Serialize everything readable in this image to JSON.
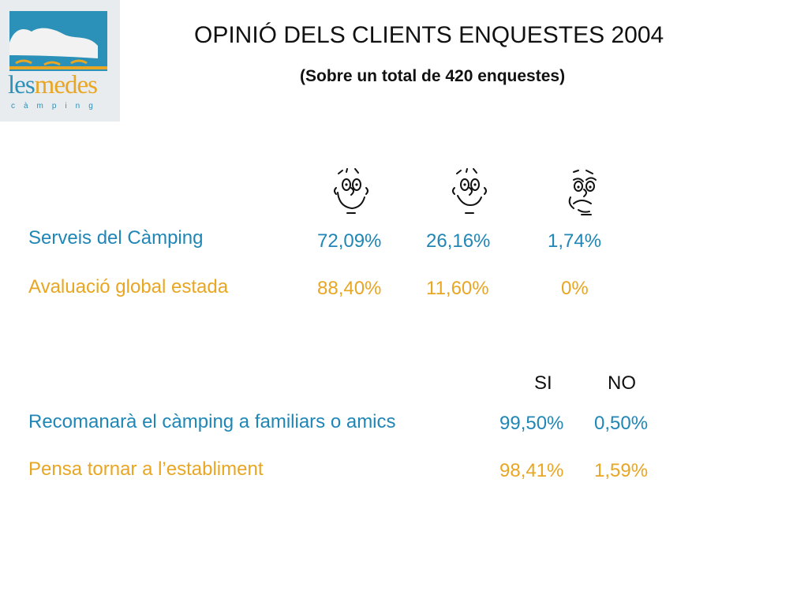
{
  "header": {
    "title": "OPINIÓ DELS CLIENTS ENQUESTES 2004",
    "subtitle": "(Sobre un total de 420 enquestes)"
  },
  "logo": {
    "word_part1": "les",
    "word_part2": "medes",
    "tagline": "càmping",
    "colors": {
      "blue": "#2b91b8",
      "orange": "#e8a623"
    }
  },
  "faces": [
    "very-happy-face-icon",
    "happy-face-icon",
    "sad-face-icon"
  ],
  "satisfaction": {
    "rows": [
      {
        "label": "Serveis del Càmping",
        "values": [
          "72,09%",
          "26,16%",
          "1,74%"
        ]
      },
      {
        "label": "Avaluació global estada",
        "values": [
          "88,40%",
          "11,60%",
          "0%"
        ]
      }
    ]
  },
  "recommend": {
    "headers": [
      "SI",
      "NO"
    ],
    "rows": [
      {
        "label": "Recomanarà el càmping a familiars o amics",
        "values": [
          "99,50%",
          "0,50%"
        ]
      },
      {
        "label": "Pensa tornar a l’establiment",
        "values": [
          "98,41%",
          "1,59%"
        ]
      }
    ]
  },
  "colors": {
    "blue": "#1f86b6",
    "orange": "#e8a623",
    "text": "#111111"
  }
}
